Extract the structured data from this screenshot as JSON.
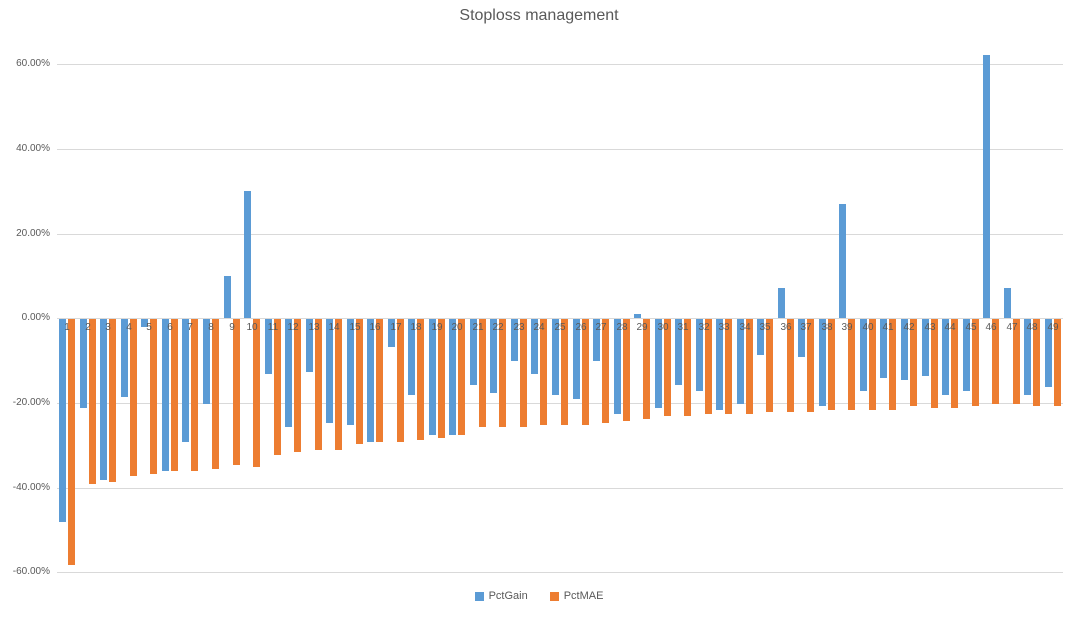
{
  "colors": {
    "pctgain_blue": "#5B9BD5",
    "pctmae_orange": "#ED7D31",
    "gridline": "#D9D9D9",
    "text": "#595959",
    "background": "#FFFFFF"
  },
  "chart_data": {
    "type": "bar",
    "title": "Stoploss management",
    "xlabel": "",
    "ylabel": "",
    "ylim": [
      -60,
      60
    ],
    "grid": true,
    "legend_position": "bottom",
    "y_ticks": [
      {
        "value": 60,
        "label": "60.00%"
      },
      {
        "value": 40,
        "label": "40.00%"
      },
      {
        "value": 20,
        "label": "20.00%"
      },
      {
        "value": 0,
        "label": "0.00%"
      },
      {
        "value": -20,
        "label": "-20.00%"
      },
      {
        "value": -40,
        "label": "-40.00%"
      },
      {
        "value": -60,
        "label": "-60.00%"
      }
    ],
    "categories": [
      1,
      2,
      3,
      4,
      5,
      6,
      7,
      8,
      9,
      10,
      11,
      12,
      13,
      14,
      15,
      16,
      17,
      18,
      19,
      20,
      21,
      22,
      23,
      24,
      25,
      26,
      27,
      28,
      29,
      30,
      31,
      32,
      33,
      34,
      35,
      36,
      37,
      38,
      39,
      40,
      41,
      42,
      43,
      44,
      45,
      46,
      47,
      48,
      49
    ],
    "series": [
      {
        "name": "PctGain",
        "color": "#5B9BD5",
        "values": [
          -48,
          -21,
          -38,
          -18.5,
          -2,
          -36,
          -29,
          -20,
          10,
          30,
          -13,
          -25.5,
          -12.5,
          -24.5,
          -25,
          -29,
          -6.5,
          -18,
          -27.5,
          -27.5,
          -15.5,
          -17.5,
          -10,
          -13,
          -18,
          -19,
          -10,
          -22.5,
          1,
          -21,
          -15.5,
          -17,
          -21.5,
          -20,
          -8.5,
          7,
          -9,
          -20.5,
          27,
          -17,
          -14,
          -14.5,
          -13.5,
          -18,
          -17,
          62,
          7,
          -18,
          -16
        ]
      },
      {
        "name": "PctMAE",
        "color": "#ED7D31",
        "values": [
          -58,
          -39,
          -38.5,
          -37,
          -36.5,
          -36,
          -36,
          -35.5,
          -34.5,
          -35,
          -32,
          -31.5,
          -31,
          -31,
          -29.5,
          -29,
          -29,
          -28.5,
          -28,
          -27.5,
          -25.5,
          -25.5,
          -25.5,
          -25,
          -25,
          -25,
          -24.5,
          -24,
          -23.5,
          -23,
          -23,
          -22.5,
          -22.5,
          -22.5,
          -22,
          -22,
          -22,
          -21.5,
          -21.5,
          -21.5,
          -21.5,
          -20.5,
          -21,
          -21,
          -20.5,
          -20,
          -20,
          -20.5,
          -20.5
        ]
      }
    ]
  }
}
